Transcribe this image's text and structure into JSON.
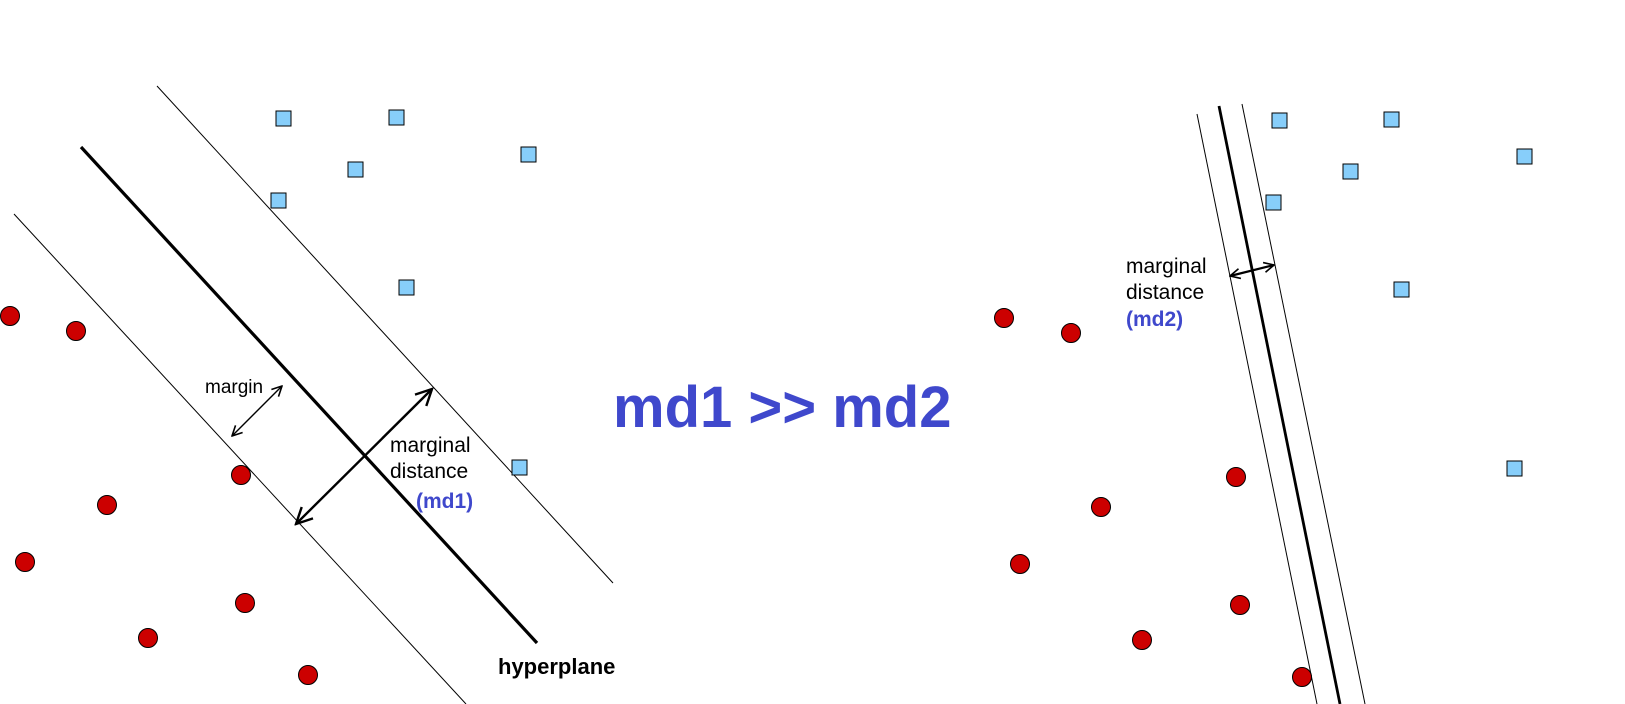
{
  "colors": {
    "circle_fill": "#cc0000",
    "square_fill": "#87cefa",
    "highlight_text": "#3f48cc",
    "line": "#000000"
  },
  "left_panel": {
    "labels": {
      "margin": "margin",
      "marginal_line1": "marginal",
      "marginal_line2": "distance",
      "md_tag": "(md1)",
      "hyperplane": "hyperplane"
    }
  },
  "comparison": {
    "text": "md1 >> md2"
  },
  "right_panel": {
    "labels": {
      "marginal_line1": "marginal",
      "marginal_line2": "distance",
      "md_tag": "(md2)"
    }
  }
}
